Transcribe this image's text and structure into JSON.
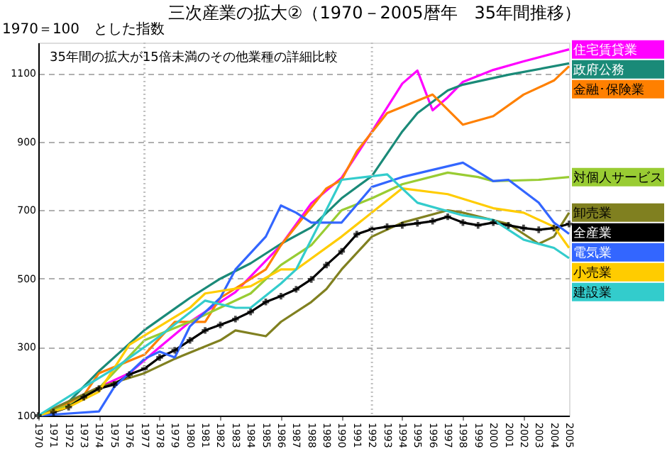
{
  "chart_data": {
    "type": "line",
    "title": "三次産業の拡大②（1970－2005暦年　35年間推移）",
    "ylabel": "1970＝100　とした指数",
    "annotations": [
      "35年間の拡大が15倍未満のその他業種の詳細比較"
    ],
    "xlim": [
      1970,
      2005
    ],
    "xticks": [
      1970,
      1971,
      1972,
      1973,
      1974,
      1975,
      1976,
      1977,
      1978,
      1979,
      1980,
      1981,
      1982,
      1983,
      1984,
      1985,
      1986,
      1987,
      1988,
      1989,
      1990,
      1991,
      1992,
      1993,
      1994,
      1995,
      1996,
      1997,
      1998,
      1999,
      2000,
      2001,
      2002,
      2003,
      2004,
      2005
    ],
    "ylim": [
      100,
      1190
    ],
    "yticks": [
      100,
      300,
      500,
      700,
      900,
      1100
    ],
    "grid": "y",
    "line_style": "solid",
    "ref_lines": [
      {
        "axis": "x",
        "value": 1977,
        "label": null,
        "color": "#c0c0c0",
        "line_style": "dotted"
      },
      {
        "axis": "x",
        "value": 1992,
        "label": null,
        "color": "#c0c0c0",
        "line_style": "dotted"
      }
    ],
    "series": [
      {
        "name": "住宅賃貸業",
        "color": "#ff00ff",
        "x": [
          1970,
          1976,
          1978,
          1980,
          1983,
          1986,
          1988,
          1990,
          1992,
          1994,
          1995,
          1996,
          1997,
          1998,
          2000,
          2002,
          2005
        ],
        "values": [
          100,
          224,
          300,
          374,
          461,
          598,
          720,
          795,
          930,
          1070,
          1108,
          992,
          1030,
          1075,
          1110,
          1135,
          1170
        ]
      },
      {
        "name": "政府公務",
        "color": "#1a8a78",
        "x": [
          1970,
          1972,
          1974,
          1977,
          1980,
          1982,
          1984,
          1986,
          1988,
          1990,
          1992,
          1994,
          1995,
          1997,
          1998,
          2001,
          2005
        ],
        "values": [
          100,
          140,
          230,
          350,
          444,
          500,
          545,
          602,
          650,
          735,
          800,
          930,
          984,
          1050,
          1067,
          1096,
          1129
        ]
      },
      {
        "name": "金融･保険業",
        "color": "#ff8000",
        "x": [
          1970,
          1972,
          1973,
          1974,
          1977,
          1979,
          1981,
          1982,
          1985,
          1986,
          1989,
          1990,
          1991,
          1993,
          1996,
          1998,
          2000,
          2002,
          2004,
          2005
        ],
        "values": [
          100,
          135,
          160,
          224,
          278,
          374,
          374,
          444,
          527,
          598,
          764,
          789,
          872,
          984,
          1038,
          950,
          975,
          1038,
          1079,
          1121
        ]
      },
      {
        "name": "対個人サービス",
        "color": "#99cc33",
        "x": [
          1970,
          1972,
          1974,
          1977,
          1980,
          1984,
          1986,
          1988,
          1990,
          1992,
          1994,
          1997,
          1999,
          2000,
          2003,
          2005
        ],
        "values": [
          100,
          130,
          180,
          320,
          374,
          457,
          540,
          598,
          700,
          735,
          776,
          810,
          797,
          785,
          789,
          797
        ]
      },
      {
        "name": "卸売業",
        "color": "#808020",
        "x": [
          1970,
          1974,
          1977,
          1979,
          1982,
          1983,
          1985,
          1986,
          1988,
          1989,
          1990,
          1992,
          1994,
          1997,
          1998,
          2001,
          2003,
          2004,
          2005
        ],
        "values": [
          100,
          183,
          224,
          266,
          320,
          349,
          332,
          374,
          432,
          470,
          527,
          623,
          664,
          700,
          693,
          660,
          602,
          623,
          693
        ]
      },
      {
        "name": "全産業",
        "color": "#000000",
        "marker": "cross",
        "x": [
          1970,
          1971,
          1972,
          1973,
          1974,
          1975,
          1976,
          1977,
          1978,
          1979,
          1980,
          1981,
          1982,
          1983,
          1984,
          1985,
          1986,
          1987,
          1988,
          1989,
          1990,
          1991,
          1992,
          1993,
          1994,
          1995,
          1996,
          1997,
          1998,
          1999,
          2000,
          2001,
          2002,
          2003,
          2004,
          2005
        ],
        "values": [
          100,
          110,
          125,
          154,
          179,
          191,
          220,
          237,
          270,
          291,
          320,
          349,
          365,
          382,
          403,
          432,
          449,
          469,
          498,
          540,
          580,
          630,
          645,
          652,
          656,
          662,
          668,
          681,
          664,
          656,
          664,
          656,
          648,
          643,
          648,
          660
        ]
      },
      {
        "name": "電気業",
        "color": "#3366ff",
        "x": [
          1970,
          1974,
          1975,
          1977,
          1978,
          1979,
          1980,
          1982,
          1983,
          1985,
          1986,
          1987,
          1988,
          1990,
          1992,
          1994,
          1998,
          2000,
          2001,
          2003,
          2004,
          2005
        ],
        "values": [
          100,
          112,
          183,
          266,
          287,
          270,
          361,
          444,
          527,
          623,
          714,
          693,
          664,
          664,
          768,
          797,
          839,
          785,
          789,
          722,
          664,
          631
        ]
      },
      {
        "name": "小売業",
        "color": "#ffcc00",
        "x": [
          1970,
          1972,
          1974,
          1976,
          1980,
          1981,
          1984,
          1986,
          1987,
          1990,
          1994,
          1997,
          2000,
          2002,
          2004,
          2005
        ],
        "values": [
          100,
          125,
          170,
          307,
          415,
          457,
          478,
          527,
          527,
          623,
          764,
          747,
          706,
          693,
          652,
          590
        ]
      },
      {
        "name": "建設業",
        "color": "#33cccc",
        "x": [
          1970,
          1973,
          1975,
          1978,
          1981,
          1983,
          1984,
          1986,
          1987,
          1990,
          1993,
          1995,
          1998,
          2000,
          2002,
          2004,
          2005
        ],
        "values": [
          100,
          183,
          237,
          332,
          436,
          415,
          415,
          486,
          527,
          789,
          805,
          722,
          685,
          672,
          614,
          590,
          560
        ]
      }
    ]
  }
}
